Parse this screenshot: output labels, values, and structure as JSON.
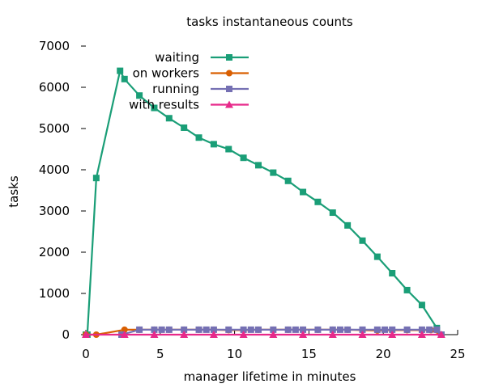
{
  "chart_data": {
    "type": "line",
    "title": "tasks instantaneous counts",
    "xlabel": "manager lifetime in minutes",
    "ylabel": "tasks",
    "xlim": [
      0,
      25
    ],
    "ylim": [
      0,
      7000
    ],
    "xticks": [
      0,
      5,
      10,
      15,
      20,
      25
    ],
    "yticks": [
      0,
      1000,
      2000,
      3000,
      4000,
      5000,
      6000,
      7000
    ],
    "grid": false,
    "legend_position": "top-right",
    "series": [
      {
        "name": "waiting",
        "color": "#1a9e77",
        "marker": "square",
        "x": [
          0.0,
          0.1,
          0.7,
          2.3,
          2.6,
          3.6,
          4.6,
          5.6,
          6.6,
          7.6,
          8.6,
          9.6,
          10.6,
          11.6,
          12.6,
          13.6,
          14.6,
          15.6,
          16.6,
          17.6,
          18.6,
          19.6,
          20.6,
          21.6,
          22.6,
          23.6,
          23.9
        ],
        "y": [
          0,
          0,
          3800,
          6400,
          6200,
          5800,
          5500,
          5250,
          5020,
          4780,
          4620,
          4500,
          4290,
          4110,
          3930,
          3730,
          3460,
          3220,
          2960,
          2650,
          2280,
          1890,
          1490,
          1080,
          720,
          160,
          0
        ]
      },
      {
        "name": "on workers",
        "color": "#d95f02",
        "marker": "circle",
        "x": [
          0.0,
          0.7,
          2.6,
          3.6,
          4.6,
          5.6,
          6.6,
          7.6,
          8.6,
          9.6,
          10.6,
          11.6,
          12.6,
          13.6,
          14.6,
          15.6,
          16.6,
          17.6,
          18.6,
          19.6,
          20.6,
          21.6,
          22.6,
          23.2,
          23.9
        ],
        "y": [
          0,
          0,
          120,
          120,
          120,
          120,
          120,
          120,
          120,
          110,
          110,
          120,
          120,
          120,
          120,
          120,
          120,
          120,
          110,
          100,
          110,
          110,
          110,
          110,
          0
        ]
      },
      {
        "name": "running",
        "color": "#7570b3",
        "marker": "square",
        "x": [
          2.4,
          3.6,
          4.6,
          5.1,
          5.6,
          6.6,
          7.6,
          8.1,
          8.6,
          9.6,
          10.6,
          11.1,
          11.6,
          12.6,
          13.6,
          14.1,
          14.6,
          15.6,
          16.6,
          17.1,
          17.6,
          18.6,
          19.6,
          20.1,
          20.6,
          21.6,
          22.6,
          23.1,
          23.6,
          23.9
        ],
        "y": [
          0,
          120,
          120,
          120,
          120,
          120,
          120,
          120,
          120,
          120,
          120,
          120,
          120,
          120,
          120,
          120,
          120,
          120,
          120,
          120,
          120,
          120,
          120,
          120,
          120,
          120,
          120,
          120,
          120,
          0
        ]
      },
      {
        "name": "with results",
        "color": "#e7298a",
        "marker": "triangle",
        "x": [
          0.0,
          2.6,
          4.6,
          6.6,
          8.6,
          10.6,
          12.6,
          14.6,
          16.6,
          18.6,
          20.6,
          22.6,
          23.9
        ],
        "y": [
          0,
          0,
          0,
          0,
          0,
          0,
          0,
          0,
          0,
          0,
          0,
          0,
          0
        ]
      }
    ]
  }
}
